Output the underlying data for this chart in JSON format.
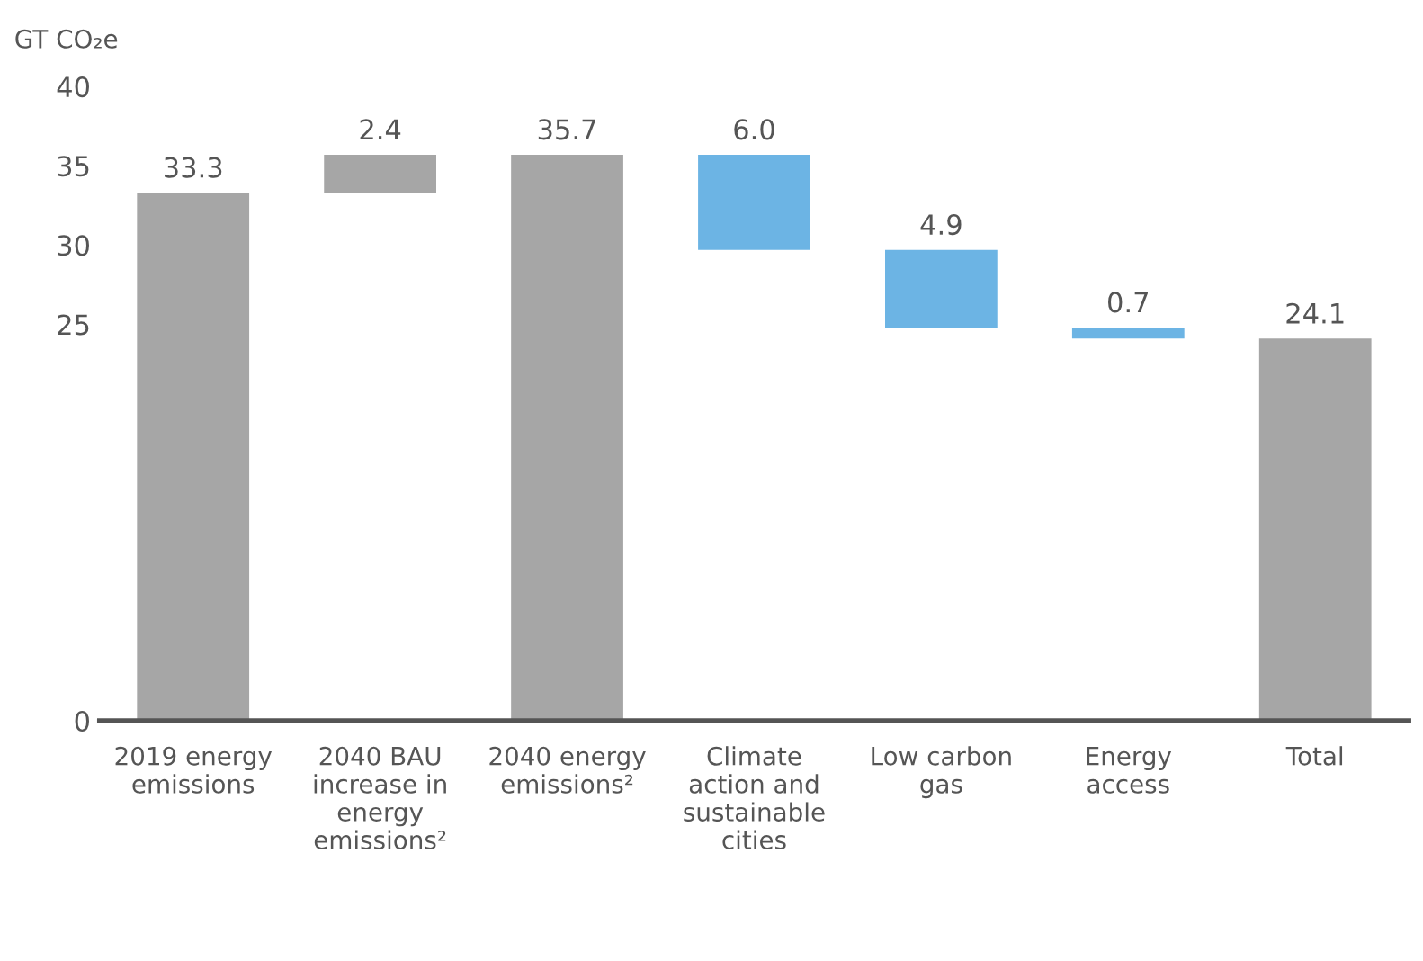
{
  "chart_data": {
    "type": "bar",
    "ylabel": "GT CO₂e",
    "categories": [
      "2019 energy emissions",
      "2040 BAU increase in energy emissions²",
      "2040 energy emissions²",
      "Climate action and sustainable cities",
      "Low carbon gas",
      "Energy access",
      "Total"
    ],
    "values": [
      33.3,
      2.4,
      35.7,
      -6.0,
      -4.9,
      -0.7,
      24.1
    ],
    "base": [
      0,
      33.3,
      0,
      35.7,
      29.7,
      24.8,
      0
    ],
    "colors": [
      "#a6a6a6",
      "#a6a6a6",
      "#a6a6a6",
      "#6cb4e4",
      "#6cb4e4",
      "#6cb4e4",
      "#a6a6a6"
    ],
    "value_labels": [
      "33.3",
      "2.4",
      "35.7",
      "6.0",
      "4.9",
      "0.7",
      "24.1"
    ],
    "ylim": [
      0,
      40
    ],
    "yticks": [
      0,
      25,
      30,
      35,
      40
    ],
    "grid": false,
    "legend": false
  }
}
